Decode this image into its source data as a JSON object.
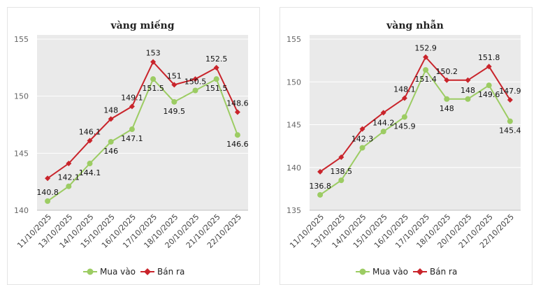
{
  "colors": {
    "buy": "#9ccc63",
    "sell": "#c9242b",
    "plot_bg": "#eaeaea",
    "grid": "#ffffff"
  },
  "chart_data": [
    {
      "type": "line",
      "title": "vàng miếng",
      "categories": [
        "11/10/2025",
        "13/10/2025",
        "14/10/2025",
        "15/10/2025",
        "16/10/2025",
        "17/10/2025",
        "18/10/2025",
        "20/10/2025",
        "21/10/2025",
        "22/10/2025"
      ],
      "ylim": [
        140,
        155
      ],
      "yticks": [
        140,
        145,
        150,
        155
      ],
      "grid": true,
      "legend_position": "bottom",
      "series": [
        {
          "name": "Mua vào",
          "values": [
            140.8,
            142.1,
            144.1,
            146,
            147.1,
            151.5,
            149.5,
            150.5,
            151.5,
            146.6
          ]
        },
        {
          "name": "Bán ra",
          "values": [
            142.8,
            144.1,
            146.1,
            148,
            149.1,
            153,
            151,
            151.5,
            152.5,
            148.6
          ]
        }
      ],
      "data_labels": [
        {
          "category": 0,
          "value": 140.8
        },
        {
          "category": 1,
          "value": 142.1
        },
        {
          "category": 2,
          "value": 144.1
        },
        {
          "category": 2,
          "value": 146.1
        },
        {
          "category": 3,
          "value": 146
        },
        {
          "category": 3,
          "value": 148
        },
        {
          "category": 4,
          "value": 147.1
        },
        {
          "category": 4,
          "value": 149.1
        },
        {
          "category": 5,
          "value": 151.5
        },
        {
          "category": 5,
          "value": 153
        },
        {
          "category": 6,
          "value": 149.5
        },
        {
          "category": 6,
          "value": 151
        },
        {
          "category": 7,
          "value": 150.5
        },
        {
          "category": 8,
          "value": 152.5
        },
        {
          "category": 8,
          "value": 151.5
        },
        {
          "category": 9,
          "value": 148.6
        },
        {
          "category": 9,
          "value": 146.6
        }
      ]
    },
    {
      "type": "line",
      "title": "vàng nhẫn",
      "categories": [
        "11/10/2025",
        "13/10/2025",
        "14/10/2025",
        "15/10/2025",
        "16/10/2025",
        "17/10/2025",
        "18/10/2025",
        "20/10/2025",
        "21/10/2025",
        "22/10/2025"
      ],
      "ylim": [
        135,
        155
      ],
      "yticks": [
        135,
        140,
        145,
        150,
        155
      ],
      "grid": true,
      "legend_position": "bottom",
      "series": [
        {
          "name": "Mua vào",
          "values": [
            136.8,
            138.5,
            142.3,
            144.2,
            145.9,
            151.4,
            148,
            148,
            149.6,
            145.4
          ]
        },
        {
          "name": "Bán ra",
          "values": [
            139.5,
            141.2,
            144.5,
            146.4,
            148.1,
            152.9,
            150.2,
            150.2,
            151.8,
            147.9
          ]
        }
      ],
      "data_labels": [
        {
          "category": 0,
          "value": 136.8
        },
        {
          "category": 1,
          "value": 138.5
        },
        {
          "category": 2,
          "value": 142.3
        },
        {
          "category": 3,
          "value": 144.2
        },
        {
          "category": 4,
          "value": 145.9
        },
        {
          "category": 4,
          "value": 148.1
        },
        {
          "category": 5,
          "value": 152.9
        },
        {
          "category": 5,
          "value": 151.4
        },
        {
          "category": 6,
          "value": 148
        },
        {
          "category": 6,
          "value": 150.2
        },
        {
          "category": 7,
          "value": 148
        },
        {
          "category": 8,
          "value": 151.8
        },
        {
          "category": 8,
          "value": 149.6
        },
        {
          "category": 9,
          "value": 147.9
        },
        {
          "category": 9,
          "value": 145.4
        }
      ]
    }
  ]
}
